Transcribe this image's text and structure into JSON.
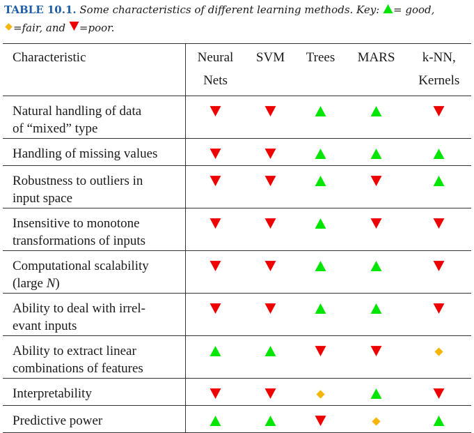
{
  "caption": {
    "label": "TABLE 10.1.",
    "text_before_good": "Some characteristics of different learning methods. Key:",
    "good_text": "= good,",
    "fair_text": "=fair, and",
    "poor_text": "=poor."
  },
  "colors": {
    "good": "#00e600",
    "fair": "#f5b50a",
    "poor": "#ee0000",
    "caption_label": "#1f5fa8"
  },
  "table": {
    "headers": {
      "characteristic": "Characteristic",
      "methods": [
        {
          "line1": "Neural",
          "line2": "Nets"
        },
        {
          "line1": "SVM",
          "line2": ""
        },
        {
          "line1": "Trees",
          "line2": ""
        },
        {
          "line1": "MARS",
          "line2": ""
        },
        {
          "line1": "k-NN,",
          "line2": "Kernels"
        }
      ]
    },
    "rows": [
      {
        "characteristic": [
          "Natural handling of data",
          "of “mixed” type"
        ],
        "ratings": [
          "poor",
          "poor",
          "good",
          "good",
          "poor"
        ]
      },
      {
        "characteristic": [
          "Handling of missing values"
        ],
        "ratings": [
          "poor",
          "poor",
          "good",
          "good",
          "good"
        ]
      },
      {
        "characteristic": [
          "Robustness to outliers in",
          "input space"
        ],
        "ratings": [
          "poor",
          "poor",
          "good",
          "poor",
          "good"
        ]
      },
      {
        "characteristic": [
          "Insensitive to monotone",
          "transformations of inputs"
        ],
        "ratings": [
          "poor",
          "poor",
          "good",
          "poor",
          "poor"
        ]
      },
      {
        "characteristic": [
          "Computational scalability",
          "(large N)"
        ],
        "ratings": [
          "poor",
          "poor",
          "good",
          "good",
          "poor"
        ]
      },
      {
        "characteristic": [
          "Ability to deal with irrel-",
          "evant inputs"
        ],
        "ratings": [
          "poor",
          "poor",
          "good",
          "good",
          "poor"
        ]
      },
      {
        "characteristic": [
          "Ability to extract linear",
          "combinations of features"
        ],
        "ratings": [
          "good",
          "good",
          "poor",
          "poor",
          "fair"
        ]
      },
      {
        "characteristic": [
          "Interpretability"
        ],
        "ratings": [
          "poor",
          "poor",
          "fair",
          "good",
          "poor"
        ]
      },
      {
        "characteristic": [
          "Predictive power"
        ],
        "ratings": [
          "good",
          "good",
          "poor",
          "fair",
          "good"
        ]
      }
    ]
  }
}
